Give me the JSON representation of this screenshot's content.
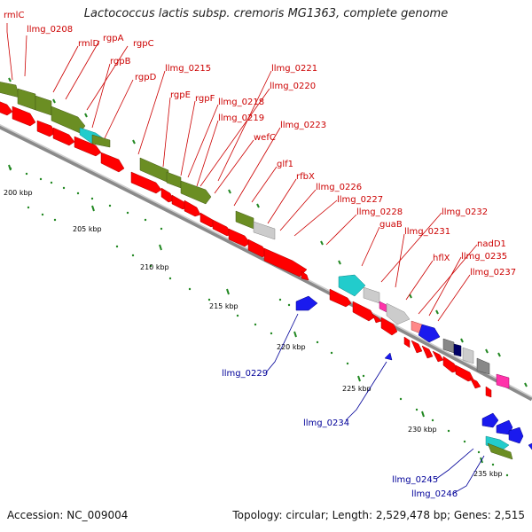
{
  "title": "Lactococcus lactis subsp. cremoris MG1363, complete genome",
  "footer": {
    "accession": "Accession: NC_009004",
    "topology": "Topology: circular; Length: 2,529,478 bp; Genes: 2,515"
  },
  "colors": {
    "backbone": "#999999",
    "cds_forward": "#ff0000",
    "cds_reverse": "#ff0000",
    "olive": "#6b8e23",
    "cyan": "#22cccc",
    "grey": "#bbbbbb",
    "blue": "#0000ee",
    "magenta": "#ff33aa",
    "navy": "#000066",
    "label_red": "#cc0000",
    "label_blue": "#000099",
    "tick_green": "#228822"
  },
  "ticks": [
    "200 kbp",
    "205 kbp",
    "210 kbp",
    "215 kbp",
    "220 kbp",
    "225 kbp",
    "230 kbp",
    "235 kbp"
  ],
  "labels_top": [
    "rmlC",
    "llmg_0208",
    "rmlD",
    "rgpA",
    "rgpC",
    "rgpB",
    "rgpD",
    "llmg_0215",
    "rgpE",
    "rgpF",
    "llmg_0218",
    "llmg_0219",
    "llmg_0221",
    "llmg_0220",
    "llmg_0223",
    "wefC",
    "glf1",
    "rfbX",
    "llmg_0226",
    "llmg_0227",
    "llmg_0228",
    "guaB",
    "llmg_0232",
    "llmg_0231",
    "hflX",
    "nadD1",
    "llmg_0235",
    "llmg_0237"
  ],
  "labels_bottom": [
    "llmg_0229",
    "llmg_0234",
    "llmg_0245",
    "llmg_0246"
  ]
}
